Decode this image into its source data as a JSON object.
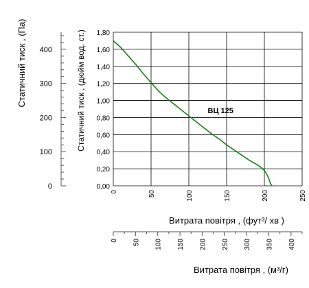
{
  "chart_data": {
    "type": "line",
    "xlabel": "Витрата повітря , (фут³/  хв )",
    "ylabel": "Статичний тиск , (дюйм вод. ст.)",
    "xlim": [
      0,
      250
    ],
    "ylim": [
      0,
      1.8
    ],
    "grid": true,
    "x_ticks": [
      "0",
      "50",
      "100",
      "150",
      "200",
      "250"
    ],
    "y_ticks": [
      "0,00",
      "0,20",
      "0,40",
      "0,60",
      "0,80",
      "1,00",
      "1,20",
      "1,40",
      "1,60",
      "1,80"
    ],
    "series": [
      {
        "name": "ВЦ 125",
        "color": "#1a7a1a",
        "x": [
          0,
          10,
          20,
          30,
          40,
          50,
          60,
          70,
          80,
          90,
          100,
          110,
          120,
          130,
          140,
          150,
          160,
          170,
          180,
          190,
          195,
          200,
          203,
          206,
          208,
          210
        ],
        "y": [
          1.7,
          1.62,
          1.52,
          1.42,
          1.31,
          1.21,
          1.11,
          1.03,
          0.96,
          0.89,
          0.82,
          0.75,
          0.68,
          0.61,
          0.55,
          0.48,
          0.42,
          0.36,
          0.3,
          0.25,
          0.22,
          0.18,
          0.14,
          0.08,
          0.03,
          0.0
        ]
      }
    ],
    "secondary_y_axis": {
      "label": "Статичний тиск , (Па)",
      "range": [
        0,
        450
      ],
      "ticks": [
        "0",
        "100",
        "200",
        "300",
        "400"
      ]
    },
    "secondary_x_axis": {
      "label": "Витрата повітря , (м³/г)",
      "range": [
        0,
        425
      ],
      "ticks": [
        "0",
        "50",
        "100",
        "150",
        "200",
        "250",
        "300",
        "350",
        "400"
      ]
    }
  }
}
